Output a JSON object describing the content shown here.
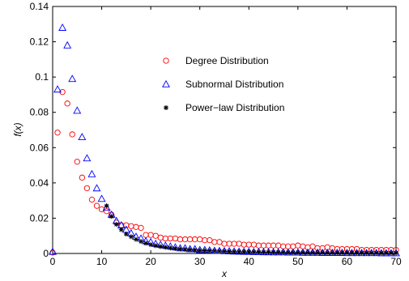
{
  "chart_data": {
    "type": "scatter",
    "title": "",
    "xlabel": "x",
    "ylabel": "f(x)",
    "xlim": [
      0,
      70
    ],
    "ylim": [
      0,
      0.14
    ],
    "xticks": [
      "0",
      "10",
      "20",
      "30",
      "40",
      "50",
      "60",
      "70"
    ],
    "yticks": [
      "0",
      "0.02",
      "0.04",
      "0.06",
      "0.08",
      "0.1",
      "0.12",
      "0.14"
    ],
    "grid": false,
    "legend_position": "top-right",
    "series": [
      {
        "name": "Degree Distribution",
        "marker": "circle",
        "color": "#ff0000",
        "x": [
          0,
          1,
          2,
          3,
          4,
          5,
          6,
          7,
          8,
          9,
          10,
          11,
          12,
          13,
          14,
          15,
          16,
          17,
          18,
          19,
          20,
          21,
          22,
          23,
          24,
          25,
          26,
          27,
          28,
          29,
          30,
          31,
          32,
          33,
          34,
          35,
          36,
          37,
          38,
          39,
          40,
          41,
          42,
          43,
          44,
          45,
          46,
          47,
          48,
          49,
          50,
          51,
          52,
          53,
          54,
          55,
          56,
          57,
          58,
          59,
          60,
          61,
          62,
          63,
          64,
          65,
          66,
          67,
          68,
          69,
          70
        ],
        "y": [
          0.0005,
          0.0685,
          0.0915,
          0.085,
          0.0675,
          0.052,
          0.043,
          0.037,
          0.0305,
          0.027,
          0.025,
          0.024,
          0.022,
          0.0175,
          0.016,
          0.016,
          0.0155,
          0.015,
          0.0145,
          0.0105,
          0.0105,
          0.01,
          0.009,
          0.0085,
          0.0085,
          0.0085,
          0.008,
          0.008,
          0.008,
          0.008,
          0.008,
          0.0075,
          0.0075,
          0.0065,
          0.0065,
          0.0055,
          0.0055,
          0.0055,
          0.0055,
          0.005,
          0.005,
          0.005,
          0.0045,
          0.0045,
          0.0045,
          0.0045,
          0.0045,
          0.004,
          0.004,
          0.004,
          0.0045,
          0.004,
          0.0035,
          0.004,
          0.003,
          0.003,
          0.0035,
          0.003,
          0.0025,
          0.0025,
          0.0025,
          0.0025,
          0.0025,
          0.002,
          0.002,
          0.002,
          0.002,
          0.002,
          0.002,
          0.002,
          0.002
        ]
      },
      {
        "name": "Subnormal Distribution",
        "marker": "triangle",
        "color": "#0000ff",
        "x": [
          0,
          1,
          2,
          3,
          4,
          5,
          6,
          7,
          8,
          9,
          10,
          11,
          12,
          13,
          14,
          15,
          16,
          17,
          18,
          19,
          20,
          21,
          22,
          23,
          24,
          25,
          26,
          27,
          28,
          29,
          30,
          31,
          32,
          33,
          34,
          35,
          36,
          37,
          38,
          39,
          40,
          41,
          42,
          43,
          44,
          45,
          46,
          47,
          48,
          49,
          50,
          51,
          52,
          53,
          54,
          55,
          56,
          57,
          58,
          59,
          60,
          61,
          62,
          63,
          64,
          65,
          66,
          67,
          68,
          69,
          70
        ],
        "y": [
          0.001,
          0.093,
          0.128,
          0.118,
          0.099,
          0.081,
          0.066,
          0.054,
          0.045,
          0.037,
          0.031,
          0.026,
          0.022,
          0.0185,
          0.016,
          0.0135,
          0.0115,
          0.0095,
          0.0085,
          0.007,
          0.0065,
          0.0055,
          0.005,
          0.0045,
          0.004,
          0.0035,
          0.003,
          0.003,
          0.0025,
          0.0025,
          0.002,
          0.002,
          0.0018,
          0.0016,
          0.0015,
          0.0014,
          0.0013,
          0.0012,
          0.0011,
          0.001,
          0.001,
          0.0009,
          0.0009,
          0.0008,
          0.0008,
          0.0007,
          0.0007,
          0.0007,
          0.0006,
          0.0006,
          0.0006,
          0.0005,
          0.0005,
          0.0005,
          0.0005,
          0.0004,
          0.0004,
          0.0004,
          0.0004,
          0.0004,
          0.0003,
          0.0003,
          0.0003,
          0.0003,
          0.0003,
          0.0003,
          0.0003,
          0.0002,
          0.0002,
          0.0002,
          0.0002
        ]
      },
      {
        "name": "Power−law Distribution",
        "marker": "star",
        "color": "#000000",
        "x": [
          11,
          12,
          13,
          14,
          15,
          16,
          17,
          18,
          19,
          20,
          21,
          22,
          23,
          24,
          25,
          26,
          27,
          28,
          29,
          30,
          31,
          32,
          33,
          34,
          35,
          36,
          37,
          38,
          39,
          40,
          41,
          42,
          43,
          44,
          45,
          46,
          47,
          48,
          49,
          50,
          51,
          52,
          53,
          54,
          55,
          56,
          57,
          58,
          59,
          60,
          61,
          62,
          63,
          64,
          65,
          66,
          67,
          68,
          69,
          70
        ],
        "y": [
          0.027,
          0.021,
          0.0165,
          0.0135,
          0.011,
          0.0095,
          0.008,
          0.0068,
          0.0058,
          0.005,
          0.0044,
          0.0039,
          0.0035,
          0.0031,
          0.0028,
          0.0025,
          0.0023,
          0.0021,
          0.0019,
          0.0017,
          0.0016,
          0.0015,
          0.0014,
          0.0013,
          0.0012,
          0.0011,
          0.001,
          0.00095,
          0.0009,
          0.00085,
          0.0008,
          0.00075,
          0.0007,
          0.00066,
          0.00062,
          0.00059,
          0.00056,
          0.00053,
          0.0005,
          0.00048,
          0.00046,
          0.00044,
          0.00042,
          0.0004,
          0.00038,
          0.00036,
          0.00035,
          0.00034,
          0.00032,
          0.00031,
          0.0003,
          0.00029,
          0.00028,
          0.00027,
          0.00026,
          0.00025,
          0.00024,
          0.00023,
          0.00022,
          0.00021
        ]
      }
    ]
  }
}
